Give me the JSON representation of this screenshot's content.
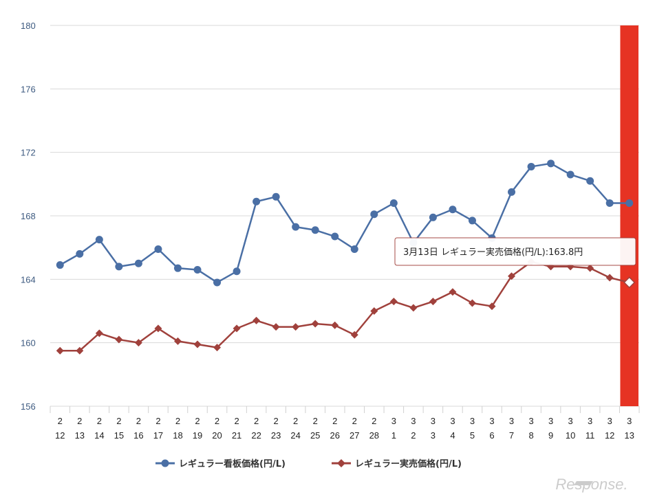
{
  "chart_data": {
    "type": "line",
    "categories": [
      [
        "2",
        "12"
      ],
      [
        "2",
        "13"
      ],
      [
        "2",
        "14"
      ],
      [
        "2",
        "15"
      ],
      [
        "2",
        "16"
      ],
      [
        "2",
        "17"
      ],
      [
        "2",
        "18"
      ],
      [
        "2",
        "19"
      ],
      [
        "2",
        "20"
      ],
      [
        "2",
        "21"
      ],
      [
        "2",
        "22"
      ],
      [
        "2",
        "23"
      ],
      [
        "2",
        "24"
      ],
      [
        "2",
        "25"
      ],
      [
        "2",
        "26"
      ],
      [
        "2",
        "27"
      ],
      [
        "2",
        "28"
      ],
      [
        "3",
        "1"
      ],
      [
        "3",
        "2"
      ],
      [
        "3",
        "3"
      ],
      [
        "3",
        "4"
      ],
      [
        "3",
        "5"
      ],
      [
        "3",
        "6"
      ],
      [
        "3",
        "7"
      ],
      [
        "3",
        "8"
      ],
      [
        "3",
        "9"
      ],
      [
        "3",
        "10"
      ],
      [
        "3",
        "11"
      ],
      [
        "3",
        "12"
      ],
      [
        "3",
        "13"
      ]
    ],
    "ylim": [
      156,
      180
    ],
    "yticks": [
      "156",
      "160",
      "164",
      "168",
      "172",
      "176",
      "180"
    ],
    "series": [
      {
        "name": "レギュラー看板価格(円/L)",
        "color": "#4a6fa5",
        "marker": "circle",
        "values": [
          164.9,
          165.6,
          166.5,
          164.8,
          165.0,
          165.9,
          164.7,
          164.6,
          163.8,
          164.5,
          168.9,
          169.2,
          167.3,
          167.1,
          166.7,
          165.9,
          168.1,
          168.8,
          166.3,
          167.9,
          168.4,
          167.7,
          166.6,
          169.5,
          171.1,
          171.3,
          170.6,
          170.2,
          168.8,
          168.8
        ]
      },
      {
        "name": "レギュラー実売価格(円/L)",
        "color": "#a0413c",
        "marker": "diamond",
        "values": [
          159.5,
          159.5,
          160.6,
          160.2,
          160.0,
          160.9,
          160.1,
          159.9,
          159.7,
          160.9,
          161.4,
          161.0,
          161.0,
          161.2,
          161.1,
          160.5,
          162.0,
          162.6,
          162.2,
          162.6,
          163.2,
          162.5,
          162.3,
          164.2,
          165.1,
          164.8,
          164.8,
          164.7,
          164.1,
          163.8
        ]
      }
    ],
    "highlight": {
      "index": 29,
      "color": "#e63323"
    },
    "tooltip": "3月13日 レギュラー実売価格(円/L):163.8円",
    "grid": true,
    "legend_position": "bottom-center"
  },
  "watermark": "Response."
}
